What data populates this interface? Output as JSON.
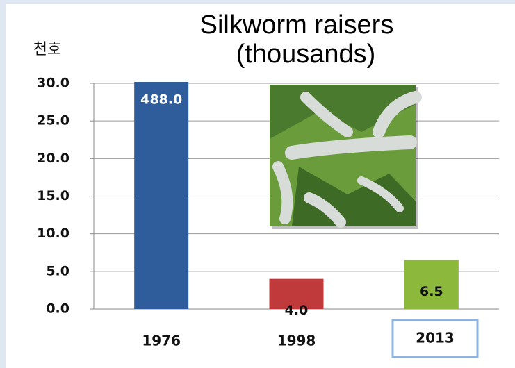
{
  "chart_data": {
    "type": "bar",
    "title": "Silkworm raisers",
    "subtitle": "(thousands)",
    "y_label": "천호",
    "categories": [
      "1976",
      "1998",
      "2013"
    ],
    "values": [
      488.0,
      4.0,
      6.5
    ],
    "value_labels": [
      "488.0",
      "4.0",
      "6.5"
    ],
    "colors": [
      "#2f5d9b",
      "#c0393b",
      "#8cb83c"
    ],
    "ylim": [
      0,
      30
    ],
    "yticks": [
      {
        "value": 0,
        "label": "0.0"
      },
      {
        "value": 5,
        "label": "5.0"
      },
      {
        "value": 10,
        "label": "10.0"
      },
      {
        "value": 15,
        "label": "15.0"
      },
      {
        "value": 20,
        "label": "20.0"
      },
      {
        "value": 25,
        "label": "25.0"
      },
      {
        "value": 30,
        "label": "30.0"
      }
    ],
    "grid": true
  }
}
